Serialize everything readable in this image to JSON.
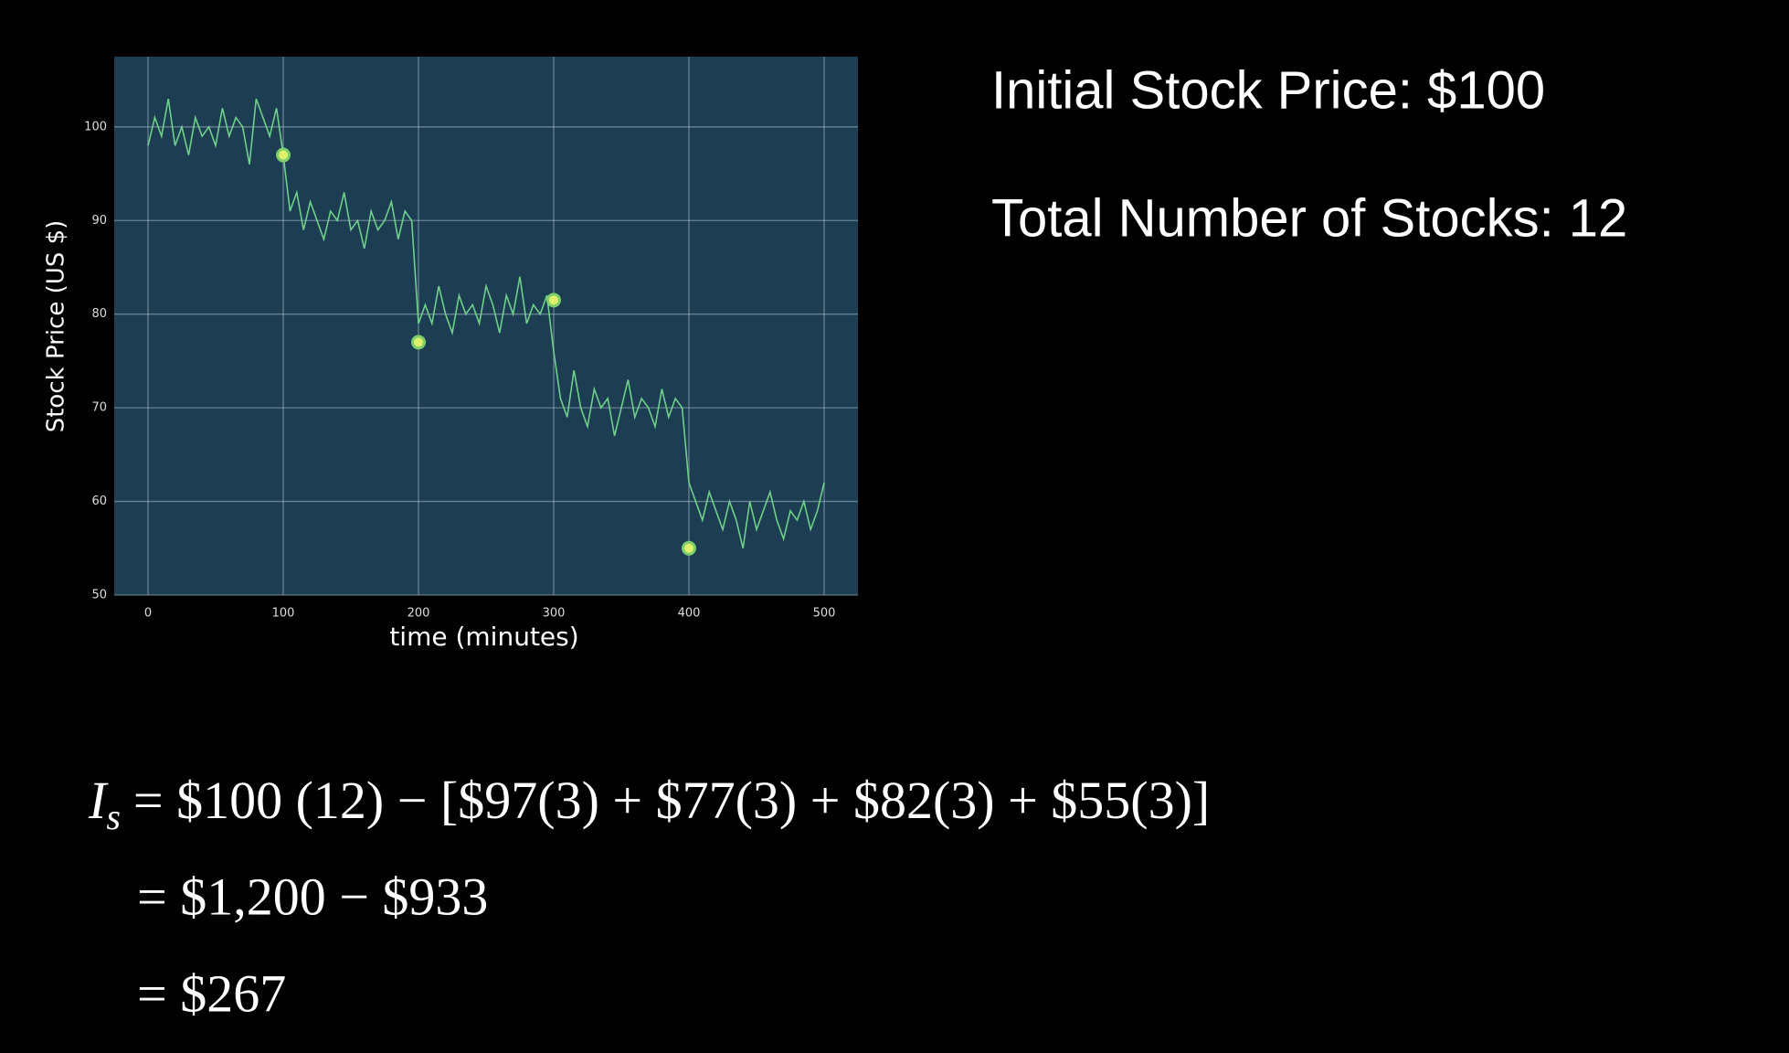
{
  "chart_data": {
    "type": "line",
    "x_label": "time (minutes)",
    "y_label": "Stock Price (US $)",
    "x": [
      0,
      5,
      10,
      15,
      20,
      25,
      30,
      35,
      40,
      45,
      50,
      55,
      60,
      65,
      70,
      75,
      80,
      85,
      90,
      95,
      100,
      105,
      110,
      115,
      120,
      125,
      130,
      135,
      140,
      145,
      150,
      155,
      160,
      165,
      170,
      175,
      180,
      185,
      190,
      195,
      200,
      205,
      210,
      215,
      220,
      225,
      230,
      235,
      240,
      245,
      250,
      255,
      260,
      265,
      270,
      275,
      280,
      285,
      290,
      295,
      300,
      305,
      310,
      315,
      320,
      325,
      330,
      335,
      340,
      345,
      350,
      355,
      360,
      365,
      370,
      375,
      380,
      385,
      390,
      395,
      400,
      405,
      410,
      415,
      420,
      425,
      430,
      435,
      440,
      445,
      450,
      455,
      460,
      465,
      470,
      475,
      480,
      485,
      490,
      495,
      500
    ],
    "series": [
      {
        "color": "#6fcf8a",
        "values": [
          98,
          101,
          99,
          103,
          98,
          100,
          97,
          101,
          99,
          100,
          98,
          102,
          99,
          101,
          100,
          96,
          103,
          101,
          99,
          102,
          97,
          91,
          93,
          89,
          92,
          90,
          88,
          91,
          90,
          93,
          89,
          90,
          87,
          91,
          89,
          90,
          92,
          88,
          91,
          90,
          79,
          81,
          79,
          83,
          80,
          78,
          82,
          80,
          81,
          79,
          83,
          81,
          78,
          82,
          80,
          84,
          79,
          81,
          80,
          82,
          76,
          71,
          69,
          74,
          70,
          68,
          72,
          70,
          71,
          67,
          70,
          73,
          69,
          71,
          70,
          68,
          72,
          69,
          71,
          70,
          62,
          60,
          58,
          61,
          59,
          57,
          60,
          58,
          55,
          60,
          57,
          59,
          61,
          58,
          56,
          59,
          58,
          60,
          57,
          59,
          62
        ]
      },
      {
        "type": "scatter",
        "color": "#dff06a",
        "x": [
          100,
          200,
          300,
          400
        ],
        "values": [
          97,
          77,
          81.5,
          55
        ]
      }
    ],
    "xlim": [
      -25,
      525
    ],
    "ylim": [
      50,
      107.5
    ],
    "xticks": [
      0,
      100,
      200,
      300,
      400,
      500
    ],
    "yticks": [
      50,
      60,
      70,
      80,
      90,
      100
    ],
    "grid": true
  },
  "info": [
    "Initial Stock Price: $100",
    "Total Number of Stocks: 12"
  ],
  "equation": {
    "lhs": "I",
    "sub": "s",
    "lines": [
      "= $100 (12)  − [$97(3) + $77(3) + $82(3) + $55(3)]",
      "= $1,200  − $933",
      "= $267"
    ]
  }
}
